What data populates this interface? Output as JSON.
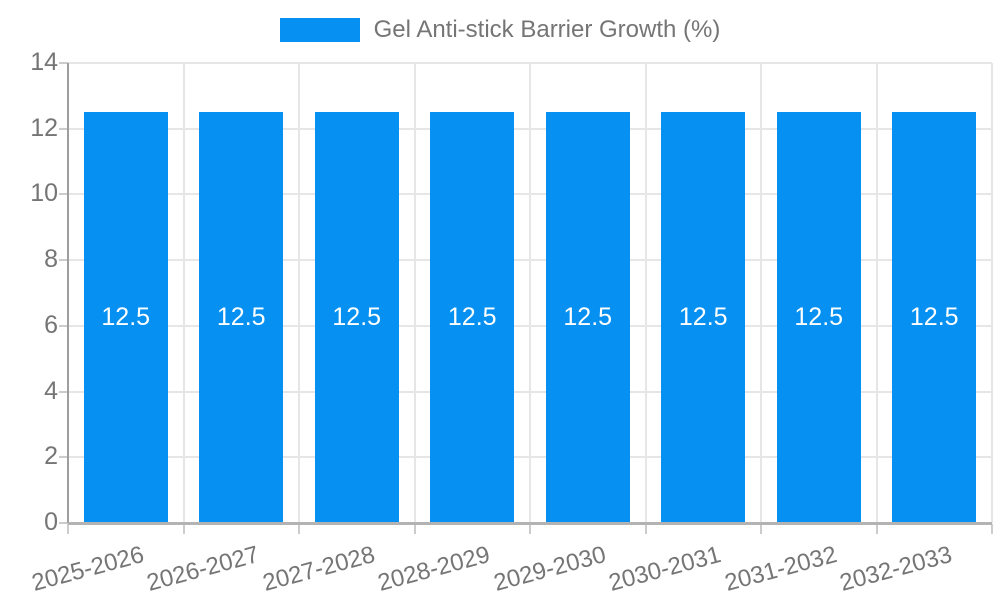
{
  "chart_data": {
    "type": "bar",
    "title": "",
    "categories": [
      "2025-2026",
      "2026-2027",
      "2027-2028",
      "2028-2029",
      "2029-2030",
      "2030-2031",
      "2031-2032",
      "2032-2033"
    ],
    "series": [
      {
        "name": "Gel Anti-stick Barrier Growth (%)",
        "values": [
          12.5,
          12.5,
          12.5,
          12.5,
          12.5,
          12.5,
          12.5,
          12.5
        ],
        "color": "#0590F2"
      }
    ],
    "value_labels": [
      "12.5",
      "12.5",
      "12.5",
      "12.5",
      "12.5",
      "12.5",
      "12.5",
      "12.5"
    ],
    "xlabel": "",
    "ylabel": "",
    "ylim": [
      0,
      14
    ],
    "yticks": [
      0,
      2,
      4,
      6,
      8,
      10,
      12,
      14
    ],
    "grid": true,
    "legend_position": "top-center"
  },
  "colors": {
    "bar": "#0590F2",
    "grid": "#e6e6e6",
    "axis": "#9e9e9e",
    "tick": "#cccccc",
    "axis_label": "#757575",
    "bar_label": "#ffffff",
    "background": "#ffffff"
  }
}
